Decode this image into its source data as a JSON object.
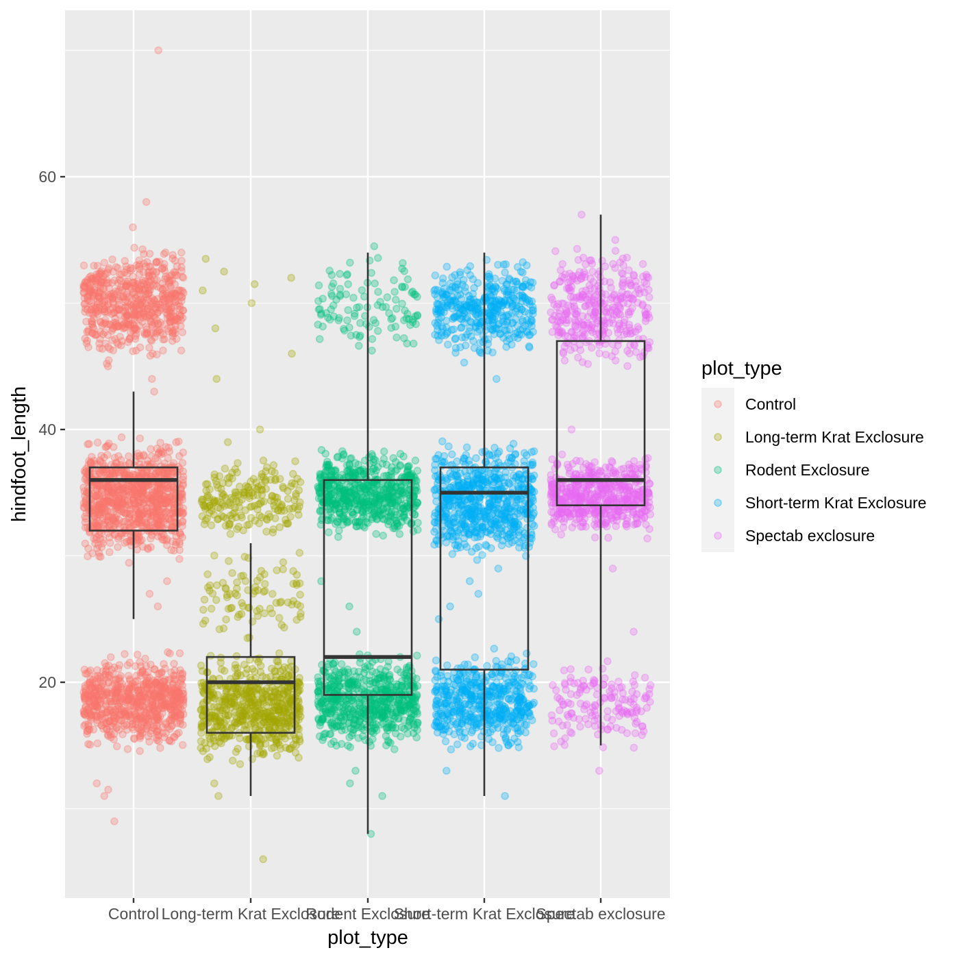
{
  "chart_data": {
    "type": "boxplot",
    "title": "",
    "xlabel": "plot_type",
    "ylabel": "hindfoot_length",
    "ylim": [
      2,
      73
    ],
    "yticks": [
      20,
      40,
      60
    ],
    "grid": true,
    "legend": {
      "title": "plot_type",
      "placement": "right",
      "entries": [
        "Control",
        "Long-term Krat Exclosure",
        "Rodent Exclosure",
        "Short-term Krat Exclosure",
        "Spectab exclosure"
      ]
    },
    "categories": [
      "Control",
      "Long-term Krat Exclosure",
      "Rodent Exclosure",
      "Short-term Krat Exclosure",
      "Spectab exclosure"
    ],
    "colors": [
      "#F8766D",
      "#A3A500",
      "#00BF7D",
      "#00B0F6",
      "#E76BF3"
    ],
    "series": [
      {
        "name": "Control",
        "box": {
          "lower_whisker": 25,
          "q1": 32,
          "median": 36,
          "q3": 37,
          "upper_whisker": 43
        },
        "point_clusters": [
          {
            "y_min": 14,
            "y_max": 23,
            "count": 700
          },
          {
            "y_min": 29,
            "y_max": 40,
            "count": 900
          },
          {
            "y_min": 45,
            "y_max": 55,
            "count": 600
          }
        ],
        "extra_points": [
          70,
          58,
          56,
          9,
          11,
          11.5,
          12,
          43,
          44,
          45,
          27,
          28,
          26
        ]
      },
      {
        "name": "Long-term Krat Exclosure",
        "box": {
          "lower_whisker": 11,
          "q1": 16,
          "median": 20,
          "q3": 22,
          "upper_whisker": 31
        },
        "point_clusters": [
          {
            "y_min": 13,
            "y_max": 23,
            "count": 600
          },
          {
            "y_min": 23,
            "y_max": 31,
            "count": 90
          },
          {
            "y_min": 31,
            "y_max": 38,
            "count": 200
          }
        ],
        "extra_points": [
          6,
          11,
          12,
          40,
          39,
          44,
          46,
          48,
          50,
          51,
          52,
          53.5,
          52.5,
          51.5
        ]
      },
      {
        "name": "Rodent Exclosure",
        "box": {
          "lower_whisker": 8,
          "q1": 19,
          "median": 22,
          "q3": 36,
          "upper_whisker": 54
        },
        "point_clusters": [
          {
            "y_min": 14,
            "y_max": 23,
            "count": 600
          },
          {
            "y_min": 31,
            "y_max": 39,
            "count": 600
          },
          {
            "y_min": 45,
            "y_max": 54,
            "count": 110
          }
        ],
        "extra_points": [
          8,
          11,
          12,
          13,
          24,
          26,
          28,
          54.5
        ]
      },
      {
        "name": "Short-term Krat Exclosure",
        "box": {
          "lower_whisker": 11,
          "q1": 21,
          "median": 35,
          "q3": 37,
          "upper_whisker": 54
        },
        "point_clusters": [
          {
            "y_min": 14,
            "y_max": 23,
            "count": 500
          },
          {
            "y_min": 29,
            "y_max": 39.5,
            "count": 650
          },
          {
            "y_min": 45,
            "y_max": 54,
            "count": 400
          }
        ],
        "extra_points": [
          11,
          13,
          44,
          25,
          26,
          27,
          28,
          29
        ]
      },
      {
        "name": "Spectab exclosure",
        "box": {
          "lower_whisker": 15,
          "q1": 34,
          "median": 36,
          "q3": 47,
          "upper_whisker": 57
        },
        "point_clusters": [
          {
            "y_min": 14,
            "y_max": 22.5,
            "count": 150
          },
          {
            "y_min": 31,
            "y_max": 38.5,
            "count": 550
          },
          {
            "y_min": 44,
            "y_max": 55,
            "count": 350
          }
        ],
        "extra_points": [
          13,
          29,
          24,
          40,
          57,
          55
        ]
      }
    ]
  }
}
